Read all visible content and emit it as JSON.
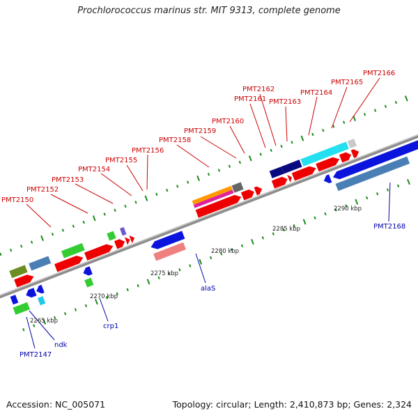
{
  "title": "Prochlorococcus marinus str. MIT 9313, complete genome",
  "accession": "Accession: NC_005071",
  "topology": "Topology: circular; Length: 2,410,873 bp; Genes: 2,324",
  "scale_labels": [
    "2265 kbp",
    "2270 kbp",
    "2275 kbp",
    "2280 kbp",
    "2285 kbp",
    "2290 kbp"
  ],
  "gene_labels_top": [
    "PMT2150",
    "PMT2152",
    "PMT2153",
    "PMT2154",
    "PMT2155",
    "PMT2156",
    "PMT2158",
    "PMT2159",
    "PMT2160",
    "PMT2161",
    "PMT2162",
    "PMT2163",
    "PMT2164",
    "PMT2165",
    "PMT2166"
  ],
  "gene_labels_bottom": [
    "PMT2147",
    "ndk",
    "crp1",
    "alaS",
    "PMT2168"
  ],
  "colors": {
    "backbone": "#8a8a8a",
    "red": "#ee0000",
    "blue": "#0a14dd",
    "steel": "#4a7fb5",
    "green": "#33cc33",
    "olive": "#6b8e23",
    "navy": "#0a0a80",
    "cyan": "#22e0f0",
    "pink": "#f08080",
    "magenta": "#e0209c",
    "orange": "#ff9900",
    "gray": "#666666",
    "purple": "#6a5acd",
    "tick": "#1a8a1a"
  }
}
